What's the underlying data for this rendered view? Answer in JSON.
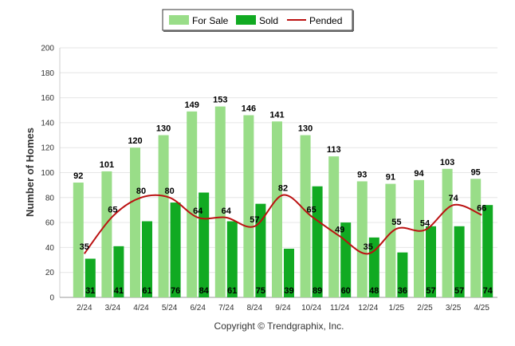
{
  "chart_data": {
    "type": "bar",
    "categories": [
      "2/24",
      "3/24",
      "4/24",
      "5/24",
      "6/24",
      "7/24",
      "8/24",
      "9/24",
      "10/24",
      "11/24",
      "12/24",
      "1/25",
      "2/25",
      "3/25",
      "4/25"
    ],
    "series": [
      {
        "name": "For Sale",
        "kind": "bar",
        "color": "#99dd88",
        "values": [
          92,
          101,
          120,
          130,
          149,
          153,
          146,
          141,
          130,
          113,
          93,
          91,
          94,
          103,
          95
        ]
      },
      {
        "name": "Sold",
        "kind": "bar",
        "color": "#11aa22",
        "values": [
          31,
          41,
          61,
          76,
          84,
          61,
          75,
          39,
          89,
          60,
          48,
          36,
          57,
          57,
          74
        ]
      },
      {
        "name": "Pended",
        "kind": "line",
        "color": "#bb1111",
        "values": [
          35,
          65,
          80,
          80,
          64,
          64,
          57,
          82,
          65,
          49,
          35,
          55,
          54,
          74,
          66
        ]
      }
    ],
    "title": "",
    "xlabel": "",
    "ylabel": "Number of Homes",
    "ylim": [
      0,
      200
    ],
    "yticks": [
      0,
      20,
      40,
      60,
      80,
      100,
      120,
      140,
      160,
      180,
      200
    ],
    "grid": true,
    "legend_position": "top-center",
    "footer": "Copyright © Trendgraphix, Inc."
  }
}
